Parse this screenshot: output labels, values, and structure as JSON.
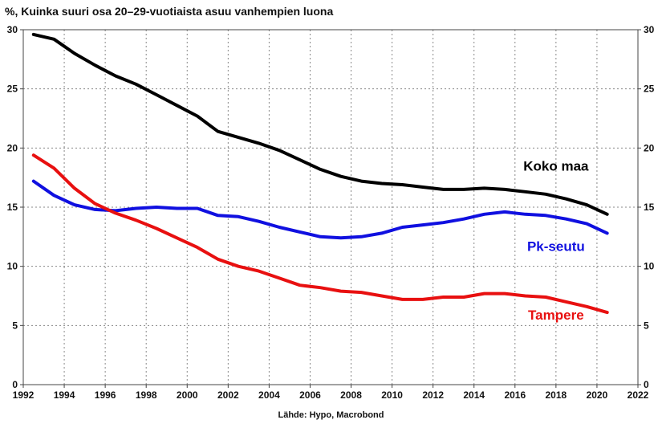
{
  "chart_data": {
    "type": "line",
    "title": "%, Kuinka suuri osa 20–29-vuotiaista asuu vanhempien luona",
    "source": "Lähde: Hypo, Macrobond",
    "xlim": [
      1992,
      2022
    ],
    "ylim": [
      0,
      30
    ],
    "x_ticks": [
      "1992",
      "1994",
      "1996",
      "1998",
      "2000",
      "2002",
      "2004",
      "2006",
      "2008",
      "2010",
      "2012",
      "2014",
      "2016",
      "2018",
      "2020",
      "2022"
    ],
    "y_ticks": [
      "0",
      "5",
      "10",
      "15",
      "20",
      "25",
      "30"
    ],
    "grid": true,
    "series": [
      {
        "name": "Koko maa",
        "color": "#000000",
        "x": [
          1992.5,
          1993.5,
          1994.5,
          1995.5,
          1996.5,
          1997.5,
          1998.5,
          1999.5,
          2000.5,
          2001.5,
          2002.5,
          2003.5,
          2004.5,
          2005.5,
          2006.5,
          2007.5,
          2008.5,
          2009.5,
          2010.5,
          2011.5,
          2012.5,
          2013.5,
          2014.5,
          2015.5,
          2016.5,
          2017.5,
          2018.5,
          2019.5,
          2020.5
        ],
        "y": [
          29.6,
          29.2,
          28.0,
          27.0,
          26.1,
          25.4,
          24.5,
          23.6,
          22.7,
          21.4,
          20.9,
          20.4,
          19.8,
          19.0,
          18.2,
          17.6,
          17.2,
          17.0,
          16.9,
          16.7,
          16.5,
          16.5,
          16.6,
          16.5,
          16.3,
          16.1,
          15.7,
          15.2,
          14.4
        ]
      },
      {
        "name": "Pk-seutu",
        "color": "#1010e0",
        "x": [
          1992.5,
          1993.5,
          1994.5,
          1995.5,
          1996.5,
          1997.5,
          1998.5,
          1999.5,
          2000.5,
          2001.5,
          2002.5,
          2003.5,
          2004.5,
          2005.5,
          2006.5,
          2007.5,
          2008.5,
          2009.5,
          2010.5,
          2011.5,
          2012.5,
          2013.5,
          2014.5,
          2015.5,
          2016.5,
          2017.5,
          2018.5,
          2019.5,
          2020.5
        ],
        "y": [
          17.2,
          16.0,
          15.2,
          14.8,
          14.7,
          14.9,
          15.0,
          14.9,
          14.9,
          14.3,
          14.2,
          13.8,
          13.3,
          12.9,
          12.5,
          12.4,
          12.5,
          12.8,
          13.3,
          13.5,
          13.7,
          14.0,
          14.4,
          14.6,
          14.4,
          14.3,
          14.0,
          13.6,
          12.8
        ]
      },
      {
        "name": "Tampere",
        "color": "#e81010",
        "x": [
          1992.5,
          1993.5,
          1994.5,
          1995.5,
          1996.5,
          1997.5,
          1998.5,
          1999.5,
          2000.5,
          2001.5,
          2002.5,
          2003.5,
          2004.5,
          2005.5,
          2006.5,
          2007.5,
          2008.5,
          2009.5,
          2010.5,
          2011.5,
          2012.5,
          2013.5,
          2014.5,
          2015.5,
          2016.5,
          2017.5,
          2018.5,
          2019.5,
          2020.5
        ],
        "y": [
          19.4,
          18.3,
          16.6,
          15.3,
          14.5,
          13.9,
          13.2,
          12.4,
          11.6,
          10.6,
          10.0,
          9.6,
          9.0,
          8.4,
          8.2,
          7.9,
          7.8,
          7.5,
          7.2,
          7.2,
          7.4,
          7.4,
          7.7,
          7.7,
          7.5,
          7.4,
          7.0,
          6.6,
          6.1
        ]
      }
    ],
    "annotations": [
      {
        "text": "Koko maa",
        "series": 0,
        "x": 2018.0,
        "y": 18.1
      },
      {
        "text": "Pk-seutu",
        "series": 1,
        "x": 2018.0,
        "y": 11.3
      },
      {
        "text": "Tampere",
        "series": 2,
        "x": 2018.0,
        "y": 5.5
      }
    ]
  }
}
